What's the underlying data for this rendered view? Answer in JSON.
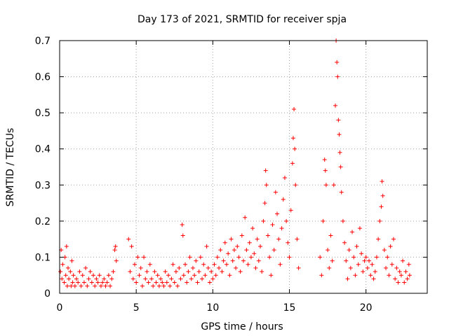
{
  "chart_data": {
    "type": "scatter",
    "title": "Day 173 of 2021, SRMTID for receiver spja",
    "xlabel": "GPS time / hours",
    "ylabel": "SRMTID / TECUs",
    "xlim": [
      0,
      24
    ],
    "ylim": [
      0,
      0.7
    ],
    "xticks": [
      0,
      5,
      10,
      15,
      20
    ],
    "xtick_labels": [
      "0",
      "5",
      "10",
      "15",
      "20"
    ],
    "yticks": [
      0,
      0.1,
      0.2,
      0.3,
      0.4,
      0.5,
      0.6,
      0.7
    ],
    "ytick_labels": [
      "0",
      "0.1",
      "0.2",
      "0.3",
      "0.4",
      "0.5",
      "0.6",
      "0.7"
    ],
    "grid": true,
    "marker": "+",
    "series": [
      {
        "name": "SRMTID",
        "color": "#ff0000",
        "points": [
          [
            0.05,
            0.06
          ],
          [
            0.1,
            0.12
          ],
          [
            0.15,
            0.04
          ],
          [
            0.2,
            0.08
          ],
          [
            0.3,
            0.03
          ],
          [
            0.35,
            0.1
          ],
          [
            0.4,
            0.05
          ],
          [
            0.45,
            0.13
          ],
          [
            0.5,
            0.02
          ],
          [
            0.55,
            0.07
          ],
          [
            0.6,
            0.04
          ],
          [
            0.7,
            0.06
          ],
          [
            0.75,
            0.02
          ],
          [
            0.8,
            0.09
          ],
          [
            0.85,
            0.03
          ],
          [
            0.9,
            0.05
          ],
          [
            1.0,
            0.02
          ],
          [
            1.1,
            0.04
          ],
          [
            1.2,
            0.03
          ],
          [
            1.3,
            0.06
          ],
          [
            1.4,
            0.02
          ],
          [
            1.5,
            0.05
          ],
          [
            1.6,
            0.03
          ],
          [
            1.7,
            0.07
          ],
          [
            1.8,
            0.02
          ],
          [
            1.9,
            0.04
          ],
          [
            2.0,
            0.06
          ],
          [
            2.1,
            0.03
          ],
          [
            2.2,
            0.05
          ],
          [
            2.3,
            0.02
          ],
          [
            2.4,
            0.04
          ],
          [
            2.5,
            0.03
          ],
          [
            2.6,
            0.05
          ],
          [
            2.7,
            0.02
          ],
          [
            2.8,
            0.03
          ],
          [
            2.9,
            0.04
          ],
          [
            3.0,
            0.02
          ],
          [
            3.1,
            0.03
          ],
          [
            3.2,
            0.05
          ],
          [
            3.3,
            0.02
          ],
          [
            3.4,
            0.04
          ],
          [
            3.5,
            0.06
          ],
          [
            3.6,
            0.12
          ],
          [
            3.65,
            0.13
          ],
          [
            3.7,
            0.09
          ],
          [
            4.5,
            0.15
          ],
          [
            4.6,
            0.06
          ],
          [
            4.7,
            0.13
          ],
          [
            4.8,
            0.04
          ],
          [
            4.9,
            0.08
          ],
          [
            5.0,
            0.03
          ],
          [
            5.1,
            0.1
          ],
          [
            5.2,
            0.05
          ],
          [
            5.3,
            0.07
          ],
          [
            5.4,
            0.02
          ],
          [
            5.5,
            0.1
          ],
          [
            5.6,
            0.04
          ],
          [
            5.7,
            0.06
          ],
          [
            5.8,
            0.03
          ],
          [
            5.9,
            0.08
          ],
          [
            6.0,
            0.04
          ],
          [
            6.1,
            0.02
          ],
          [
            6.2,
            0.06
          ],
          [
            6.3,
            0.03
          ],
          [
            6.4,
            0.05
          ],
          [
            6.5,
            0.02
          ],
          [
            6.6,
            0.04
          ],
          [
            6.7,
            0.03
          ],
          [
            6.8,
            0.02
          ],
          [
            6.9,
            0.06
          ],
          [
            7.0,
            0.03
          ],
          [
            7.1,
            0.05
          ],
          [
            7.2,
            0.02
          ],
          [
            7.3,
            0.04
          ],
          [
            7.4,
            0.08
          ],
          [
            7.5,
            0.03
          ],
          [
            7.6,
            0.06
          ],
          [
            7.7,
            0.02
          ],
          [
            7.8,
            0.07
          ],
          [
            7.9,
            0.04
          ],
          [
            8.0,
            0.19
          ],
          [
            8.05,
            0.16
          ],
          [
            8.1,
            0.05
          ],
          [
            8.2,
            0.08
          ],
          [
            8.3,
            0.03
          ],
          [
            8.4,
            0.06
          ],
          [
            8.5,
            0.1
          ],
          [
            8.6,
            0.04
          ],
          [
            8.7,
            0.07
          ],
          [
            8.8,
            0.05
          ],
          [
            8.9,
            0.09
          ],
          [
            9.0,
            0.03
          ],
          [
            9.1,
            0.06
          ],
          [
            9.2,
            0.1
          ],
          [
            9.3,
            0.04
          ],
          [
            9.4,
            0.08
          ],
          [
            9.5,
            0.05
          ],
          [
            9.6,
            0.13
          ],
          [
            9.7,
            0.07
          ],
          [
            9.8,
            0.03
          ],
          [
            9.9,
            0.06
          ],
          [
            10.0,
            0.04
          ],
          [
            10.1,
            0.08
          ],
          [
            10.2,
            0.05
          ],
          [
            10.3,
            0.1
          ],
          [
            10.4,
            0.07
          ],
          [
            10.5,
            0.12
          ],
          [
            10.6,
            0.06
          ],
          [
            10.7,
            0.09
          ],
          [
            10.8,
            0.14
          ],
          [
            10.9,
            0.08
          ],
          [
            11.0,
            0.11
          ],
          [
            11.1,
            0.05
          ],
          [
            11.2,
            0.15
          ],
          [
            11.3,
            0.09
          ],
          [
            11.4,
            0.12
          ],
          [
            11.5,
            0.07
          ],
          [
            11.6,
            0.13
          ],
          [
            11.7,
            0.1
          ],
          [
            11.8,
            0.06
          ],
          [
            11.9,
            0.16
          ],
          [
            12.0,
            0.09
          ],
          [
            12.1,
            0.21
          ],
          [
            12.2,
            0.12
          ],
          [
            12.3,
            0.08
          ],
          [
            12.4,
            0.14
          ],
          [
            12.5,
            0.1
          ],
          [
            12.6,
            0.18
          ],
          [
            12.7,
            0.11
          ],
          [
            12.8,
            0.07
          ],
          [
            12.9,
            0.15
          ],
          [
            13.0,
            0.09
          ],
          [
            13.1,
            0.13
          ],
          [
            13.2,
            0.06
          ],
          [
            13.3,
            0.2
          ],
          [
            13.4,
            0.25
          ],
          [
            13.45,
            0.34
          ],
          [
            13.5,
            0.3
          ],
          [
            13.6,
            0.16
          ],
          [
            13.7,
            0.1
          ],
          [
            13.8,
            0.05
          ],
          [
            13.9,
            0.19
          ],
          [
            14.0,
            0.12
          ],
          [
            14.1,
            0.28
          ],
          [
            14.2,
            0.22
          ],
          [
            14.3,
            0.15
          ],
          [
            14.4,
            0.08
          ],
          [
            14.5,
            0.18
          ],
          [
            14.6,
            0.26
          ],
          [
            14.7,
            0.32
          ],
          [
            14.8,
            0.2
          ],
          [
            14.9,
            0.14
          ],
          [
            15.0,
            0.1
          ],
          [
            15.1,
            0.23
          ],
          [
            15.2,
            0.36
          ],
          [
            15.25,
            0.43
          ],
          [
            15.3,
            0.51
          ],
          [
            15.35,
            0.4
          ],
          [
            15.4,
            0.3
          ],
          [
            15.5,
            0.15
          ],
          [
            15.6,
            0.07
          ],
          [
            17.0,
            0.1
          ],
          [
            17.1,
            0.05
          ],
          [
            17.2,
            0.2
          ],
          [
            17.3,
            0.37
          ],
          [
            17.35,
            0.34
          ],
          [
            17.4,
            0.3
          ],
          [
            17.5,
            0.12
          ],
          [
            17.6,
            0.07
          ],
          [
            17.7,
            0.16
          ],
          [
            17.8,
            0.09
          ],
          [
            17.9,
            0.3
          ],
          [
            18.0,
            0.52
          ],
          [
            18.05,
            0.7
          ],
          [
            18.1,
            0.64
          ],
          [
            18.15,
            0.6
          ],
          [
            18.2,
            0.48
          ],
          [
            18.25,
            0.44
          ],
          [
            18.3,
            0.39
          ],
          [
            18.35,
            0.35
          ],
          [
            18.4,
            0.28
          ],
          [
            18.5,
            0.2
          ],
          [
            18.6,
            0.14
          ],
          [
            18.7,
            0.09
          ],
          [
            18.8,
            0.04
          ],
          [
            18.9,
            0.12
          ],
          [
            19.0,
            0.07
          ],
          [
            19.1,
            0.17
          ],
          [
            19.2,
            0.1
          ],
          [
            19.3,
            0.05
          ],
          [
            19.4,
            0.13
          ],
          [
            19.5,
            0.08
          ],
          [
            19.6,
            0.18
          ],
          [
            19.7,
            0.11
          ],
          [
            19.8,
            0.06
          ],
          [
            19.9,
            0.09
          ],
          [
            20.0,
            0.1
          ],
          [
            20.1,
            0.07
          ],
          [
            20.2,
            0.09
          ],
          [
            20.3,
            0.05
          ],
          [
            20.4,
            0.08
          ],
          [
            20.5,
            0.04
          ],
          [
            20.6,
            0.06
          ],
          [
            20.7,
            0.1
          ],
          [
            20.8,
            0.15
          ],
          [
            20.9,
            0.2
          ],
          [
            21.0,
            0.24
          ],
          [
            21.05,
            0.31
          ],
          [
            21.1,
            0.27
          ],
          [
            21.2,
            0.12
          ],
          [
            21.3,
            0.07
          ],
          [
            21.4,
            0.1
          ],
          [
            21.5,
            0.05
          ],
          [
            21.6,
            0.13
          ],
          [
            21.7,
            0.08
          ],
          [
            21.8,
            0.15
          ],
          [
            21.9,
            0.04
          ],
          [
            22.0,
            0.07
          ],
          [
            22.1,
            0.03
          ],
          [
            22.2,
            0.06
          ],
          [
            22.3,
            0.05
          ],
          [
            22.4,
            0.09
          ],
          [
            22.5,
            0.03
          ],
          [
            22.6,
            0.06
          ],
          [
            22.7,
            0.04
          ],
          [
            22.8,
            0.08
          ],
          [
            22.85,
            0.05
          ]
        ]
      }
    ]
  }
}
